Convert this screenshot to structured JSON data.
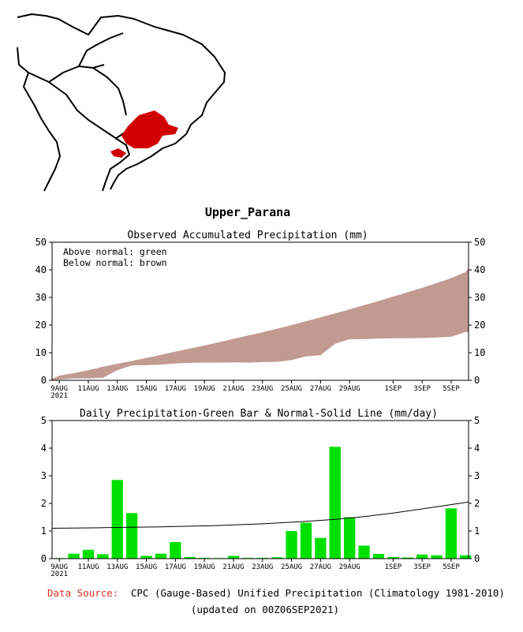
{
  "region_title": "Upper_Parana",
  "source": {
    "label": "Data Source:",
    "text": "CPC (Gauge-Based) Unified Precipitation (Climatology 1981-2010)",
    "updated": "(updated on 00Z06SEP2021)"
  },
  "colors": {
    "normal_band": "#c19a92",
    "bars": "#00e000",
    "source_label": "#e03020",
    "map_highlight": "#d00000"
  },
  "x_ticks": [
    {
      "day": 0,
      "label": "9AUG",
      "sub": "2021"
    },
    {
      "day": 2,
      "label": "11AUG"
    },
    {
      "day": 4,
      "label": "13AUG"
    },
    {
      "day": 6,
      "label": "15AUG"
    },
    {
      "day": 8,
      "label": "17AUG"
    },
    {
      "day": 10,
      "label": "19AUG"
    },
    {
      "day": 12,
      "label": "21AUG"
    },
    {
      "day": 14,
      "label": "23AUG"
    },
    {
      "day": 16,
      "label": "25AUG"
    },
    {
      "day": 18,
      "label": "27AUG"
    },
    {
      "day": 20,
      "label": "29AUG"
    },
    {
      "day": 23,
      "label": "1SEP"
    },
    {
      "day": 25,
      "label": "3SEP"
    },
    {
      "day": 27,
      "label": "5SEP"
    }
  ],
  "chart_data": [
    {
      "type": "area",
      "title": "Observed Accumulated Precipitation (mm)",
      "legend": [
        "Above normal: green",
        "Below normal: brown"
      ],
      "ylim": [
        0,
        50
      ],
      "yticks": [
        0,
        10,
        20,
        30,
        40,
        50
      ],
      "xlim": [
        -0.5,
        28.2
      ],
      "series": [
        {
          "name": "Observed accumulated",
          "x": [
            -0.5,
            0,
            1,
            2,
            3,
            4,
            5,
            6,
            7,
            8,
            9,
            10,
            11,
            12,
            13,
            14,
            15,
            16,
            17,
            18,
            19,
            20,
            21,
            22,
            23,
            24,
            25,
            26,
            27,
            28,
            28.2
          ],
          "values": [
            0,
            0.3,
            0.7,
            0.7,
            0.9,
            3.7,
            5.4,
            5.5,
            5.7,
            6.1,
            6.3,
            6.4,
            6.4,
            6.5,
            6.4,
            6.6,
            6.7,
            7.3,
            8.7,
            9.1,
            13.2,
            14.9,
            14.9,
            15.1,
            15.2,
            15.2,
            15.3,
            15.5,
            15.8,
            17.5,
            17.5
          ]
        },
        {
          "name": "Normal accumulated",
          "x": [
            -0.5,
            0,
            1,
            2,
            3,
            4,
            5,
            6,
            7,
            8,
            9,
            10,
            11,
            12,
            13,
            14,
            15,
            16,
            17,
            18,
            19,
            20,
            21,
            22,
            23,
            24,
            25,
            26,
            27,
            28,
            28.2
          ],
          "values": [
            0.5,
            1.7,
            2.6,
            3.7,
            4.9,
            6.0,
            7.0,
            8.1,
            9.2,
            10.4,
            11.5,
            12.6,
            13.8,
            15.0,
            16.2,
            17.4,
            18.7,
            20.0,
            21.4,
            22.8,
            24.2,
            25.7,
            27.2,
            28.7,
            30.3,
            31.9,
            33.5,
            35.2,
            37.0,
            39.2,
            40.6
          ]
        }
      ]
    },
    {
      "type": "bar",
      "title": "Daily Precipitation-Green Bar & Normal-Solid Line (mm/day)",
      "ylim": [
        0,
        5
      ],
      "yticks": [
        0,
        1,
        2,
        3,
        4,
        5
      ],
      "xlim": [
        -0.5,
        28.2
      ],
      "days": [
        0,
        1,
        2,
        3,
        4,
        5,
        6,
        7,
        8,
        9,
        10,
        11,
        12,
        13,
        14,
        15,
        16,
        17,
        18,
        19,
        20,
        21,
        22,
        23,
        24,
        25,
        26,
        27,
        28
      ],
      "values": [
        0.02,
        0.18,
        0.32,
        0.16,
        2.85,
        1.65,
        0.1,
        0.18,
        0.6,
        0.06,
        0.03,
        0.02,
        0.1,
        0.03,
        0.03,
        0.05,
        1.0,
        1.3,
        0.75,
        4.05,
        1.5,
        0.47,
        0.17,
        0.06,
        0.04,
        0.15,
        0.12,
        1.82,
        0.12
      ],
      "normal": {
        "x": [
          -0.5,
          3,
          7,
          11,
          14,
          17,
          19,
          21,
          23,
          25,
          28.2
        ],
        "values": [
          1.1,
          1.12,
          1.15,
          1.2,
          1.26,
          1.35,
          1.42,
          1.52,
          1.65,
          1.8,
          2.05
        ]
      }
    }
  ]
}
